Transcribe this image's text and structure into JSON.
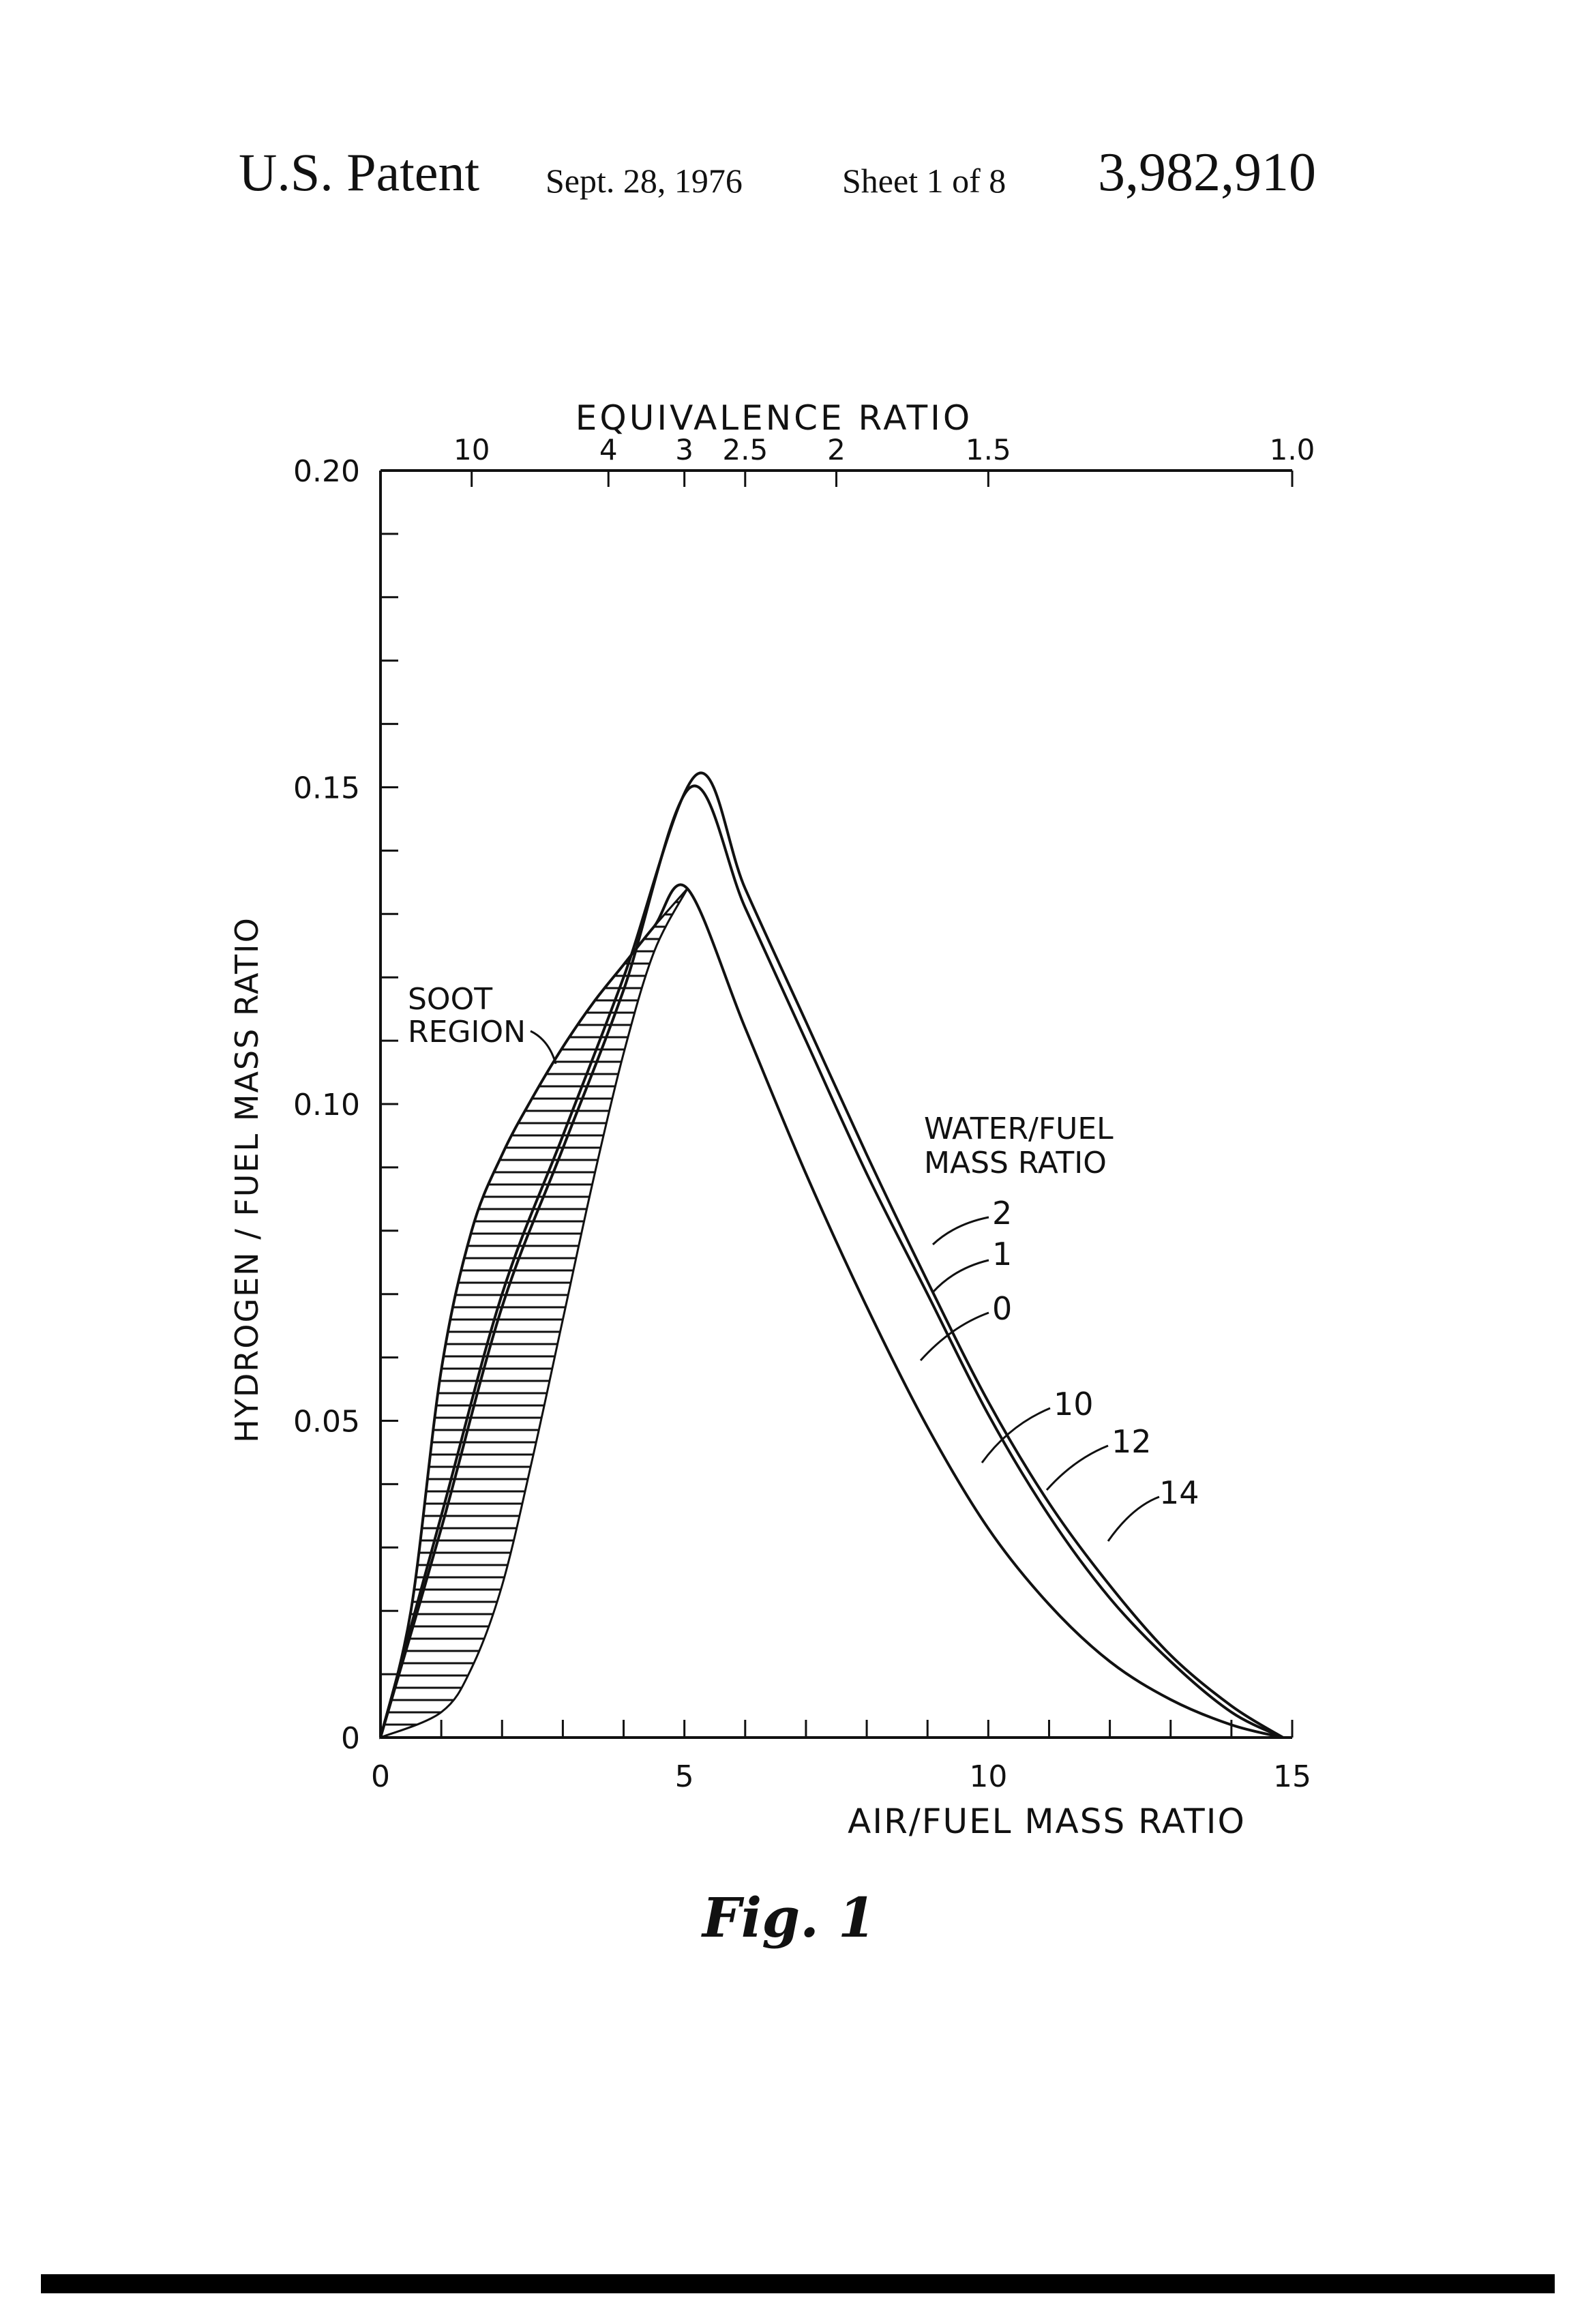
{
  "header": {
    "patent_label": "U.S. Patent",
    "date": "Sept. 28, 1976",
    "sheet": "Sheet 1 of 8",
    "patent_number": "3,982,910"
  },
  "figure_label": "Fig. 1",
  "colors": {
    "ink": "#111111",
    "background": "#ffffff"
  },
  "chart_data": {
    "type": "line",
    "title": "",
    "xlabel": "AIR/FUEL MASS RATIO",
    "ylabel": "HYDROGEN / FUEL MASS RATIO",
    "top_axis_label": "EQUIVALENCE RATIO",
    "xlim": [
      0,
      15
    ],
    "ylim": [
      0,
      0.2
    ],
    "grid": false,
    "x_tick_labels": [
      "0",
      "5",
      "10",
      "15"
    ],
    "x_tick_values": [
      0,
      5,
      10,
      15
    ],
    "x_minor_tick_step": 1,
    "y_tick_labels": [
      "0",
      "0.05",
      "0.10",
      "0.15",
      "0.20"
    ],
    "y_tick_values": [
      0,
      0.05,
      0.1,
      0.15,
      0.2
    ],
    "y_minor_tick_step": 0.01,
    "top_axis_ticks": [
      {
        "label": "10",
        "air_fuel": 1.5
      },
      {
        "label": "4",
        "air_fuel": 3.75
      },
      {
        "label": "3",
        "air_fuel": 5.0
      },
      {
        "label": "2.5",
        "air_fuel": 6.0
      },
      {
        "label": "2",
        "air_fuel": 7.5
      },
      {
        "label": "1.5",
        "air_fuel": 10.0
      },
      {
        "label": "1.0",
        "air_fuel": 15.0
      }
    ],
    "series_group_label": "WATER/FUEL MASS RATIO",
    "series": [
      {
        "name": "2",
        "x": [
          0,
          1,
          2,
          3,
          4,
          5.2,
          6,
          7,
          8,
          9,
          10,
          11,
          12,
          13,
          14,
          14.85
        ],
        "y": [
          0,
          0.035,
          0.07,
          0.095,
          0.12,
          0.152,
          0.134,
          0.113,
          0.092,
          0.072,
          0.053,
          0.037,
          0.024,
          0.013,
          0.005,
          0
        ]
      },
      {
        "name": "1",
        "x": [
          0,
          1,
          2,
          3,
          4,
          5.1,
          6,
          7,
          8,
          9,
          10,
          11,
          12,
          13,
          14,
          14.85
        ],
        "y": [
          0,
          0.033,
          0.068,
          0.093,
          0.118,
          0.15,
          0.131,
          0.11,
          0.089,
          0.07,
          0.051,
          0.035,
          0.022,
          0.012,
          0.004,
          0
        ]
      },
      {
        "name": "0",
        "x": [
          0,
          0.5,
          1,
          1.5,
          2,
          2.5,
          3,
          3.5,
          4,
          4.5,
          5.05,
          6,
          7,
          8,
          9,
          10,
          11,
          12,
          13,
          14,
          14.85
        ],
        "y": [
          0,
          0.02,
          0.058,
          0.08,
          0.092,
          0.101,
          0.109,
          0.116,
          0.122,
          0.128,
          0.134,
          0.112,
          0.089,
          0.068,
          0.049,
          0.033,
          0.021,
          0.012,
          0.006,
          0.002,
          0
        ]
      }
    ],
    "annotations": [
      {
        "text": "SOOT REGION"
      },
      {
        "text": "10"
      },
      {
        "text": "12"
      },
      {
        "text": "14"
      }
    ]
  }
}
